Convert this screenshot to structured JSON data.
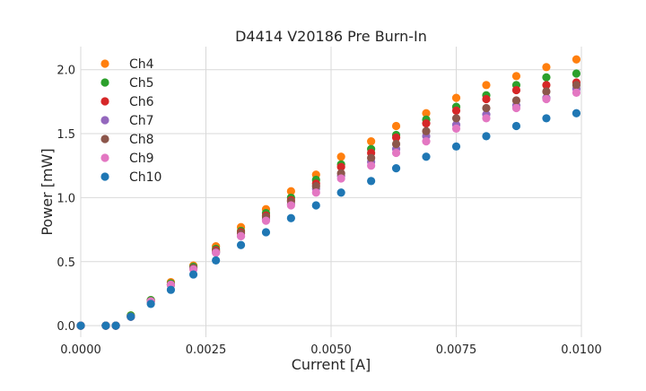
{
  "chart_data": {
    "type": "scatter",
    "title": "D4414 V20186 Pre Burn-In",
    "xlabel": "Current [A]",
    "ylabel": "Power [mW]",
    "xlim": [
      0.0,
      0.01
    ],
    "ylim": [
      -0.09,
      2.18
    ],
    "xticks": [
      "0.0000",
      "0.0025",
      "0.0050",
      "0.0075",
      "0.0100"
    ],
    "yticks": [
      "0.0",
      "0.5",
      "1.0",
      "1.5",
      "2.0"
    ],
    "grid": true,
    "legend_position": "top-left",
    "series": [
      {
        "name": "Ch4",
        "color": "#ff7f0e",
        "x": [
          0.0,
          0.0005,
          0.0007,
          0.001,
          0.0014,
          0.0018,
          0.00225,
          0.0027,
          0.0032,
          0.0037,
          0.0042,
          0.0047,
          0.0052,
          0.0058,
          0.0063,
          0.0069,
          0.0075,
          0.0081,
          0.0087,
          0.0093,
          0.0099
        ],
        "y": [
          0.0,
          0.0,
          0.0,
          0.08,
          0.2,
          0.34,
          0.47,
          0.62,
          0.77,
          0.91,
          1.05,
          1.18,
          1.32,
          1.44,
          1.56,
          1.66,
          1.78,
          1.88,
          1.95,
          2.02,
          2.08
        ]
      },
      {
        "name": "Ch5",
        "color": "#2ca02c",
        "x": [
          0.0,
          0.0005,
          0.0007,
          0.001,
          0.0014,
          0.0018,
          0.00225,
          0.0027,
          0.0032,
          0.0037,
          0.0042,
          0.0047,
          0.0052,
          0.0058,
          0.0063,
          0.0069,
          0.0075,
          0.0081,
          0.0087,
          0.0093,
          0.0099
        ],
        "y": [
          0.0,
          0.0,
          0.0,
          0.08,
          0.2,
          0.33,
          0.46,
          0.6,
          0.74,
          0.88,
          1.0,
          1.14,
          1.26,
          1.38,
          1.49,
          1.61,
          1.71,
          1.8,
          1.88,
          1.94,
          1.97
        ]
      },
      {
        "name": "Ch6",
        "color": "#d62728",
        "x": [
          0.0,
          0.0005,
          0.0007,
          0.001,
          0.0014,
          0.0018,
          0.00225,
          0.0027,
          0.0032,
          0.0037,
          0.0042,
          0.0047,
          0.0052,
          0.0058,
          0.0063,
          0.0069,
          0.0075,
          0.0081,
          0.0087,
          0.0093,
          0.0099
        ],
        "y": [
          0.0,
          0.0,
          0.0,
          0.07,
          0.19,
          0.32,
          0.45,
          0.59,
          0.73,
          0.86,
          0.98,
          1.11,
          1.24,
          1.35,
          1.47,
          1.58,
          1.68,
          1.77,
          1.84,
          1.88,
          1.9
        ]
      },
      {
        "name": "Ch7",
        "color": "#9467bd",
        "x": [
          0.0,
          0.0005,
          0.0007,
          0.001,
          0.0014,
          0.0018,
          0.00225,
          0.0027,
          0.0032,
          0.0037,
          0.0042,
          0.0047,
          0.0052,
          0.0058,
          0.0063,
          0.0069,
          0.0075,
          0.0081,
          0.0087,
          0.0093,
          0.0099
        ],
        "y": [
          0.0,
          0.0,
          0.0,
          0.07,
          0.19,
          0.32,
          0.45,
          0.57,
          0.7,
          0.83,
          0.95,
          1.07,
          1.17,
          1.28,
          1.38,
          1.48,
          1.57,
          1.65,
          1.72,
          1.78,
          1.85
        ]
      },
      {
        "name": "Ch8",
        "color": "#8c564b",
        "x": [
          0.0,
          0.0005,
          0.0007,
          0.001,
          0.0014,
          0.0018,
          0.00225,
          0.0027,
          0.0032,
          0.0037,
          0.0042,
          0.0047,
          0.0052,
          0.0058,
          0.0063,
          0.0069,
          0.0075,
          0.0081,
          0.0087,
          0.0093,
          0.0099
        ],
        "y": [
          0.0,
          0.0,
          0.0,
          0.07,
          0.19,
          0.32,
          0.45,
          0.58,
          0.72,
          0.85,
          0.97,
          1.09,
          1.19,
          1.31,
          1.42,
          1.52,
          1.62,
          1.7,
          1.76,
          1.83,
          1.88
        ]
      },
      {
        "name": "Ch9",
        "color": "#e377c2",
        "x": [
          0.0,
          0.0005,
          0.0007,
          0.001,
          0.0014,
          0.0018,
          0.00225,
          0.0027,
          0.0032,
          0.0037,
          0.0042,
          0.0047,
          0.0052,
          0.0058,
          0.0063,
          0.0069,
          0.0075,
          0.0081,
          0.0087,
          0.0093,
          0.0099
        ],
        "y": [
          0.0,
          0.0,
          0.0,
          0.07,
          0.19,
          0.32,
          0.44,
          0.57,
          0.7,
          0.82,
          0.94,
          1.04,
          1.15,
          1.25,
          1.35,
          1.44,
          1.54,
          1.62,
          1.7,
          1.77,
          1.82
        ]
      },
      {
        "name": "Ch10",
        "color": "#1f77b4",
        "x": [
          0.0,
          0.0005,
          0.0007,
          0.001,
          0.0014,
          0.0018,
          0.00225,
          0.0027,
          0.0032,
          0.0037,
          0.0042,
          0.0047,
          0.0052,
          0.0058,
          0.0063,
          0.0069,
          0.0075,
          0.0081,
          0.0087,
          0.0093,
          0.0099
        ],
        "y": [
          0.0,
          0.0,
          0.0,
          0.07,
          0.17,
          0.28,
          0.4,
          0.51,
          0.63,
          0.73,
          0.84,
          0.94,
          1.04,
          1.13,
          1.23,
          1.32,
          1.4,
          1.48,
          1.56,
          1.62,
          1.66
        ]
      }
    ]
  }
}
